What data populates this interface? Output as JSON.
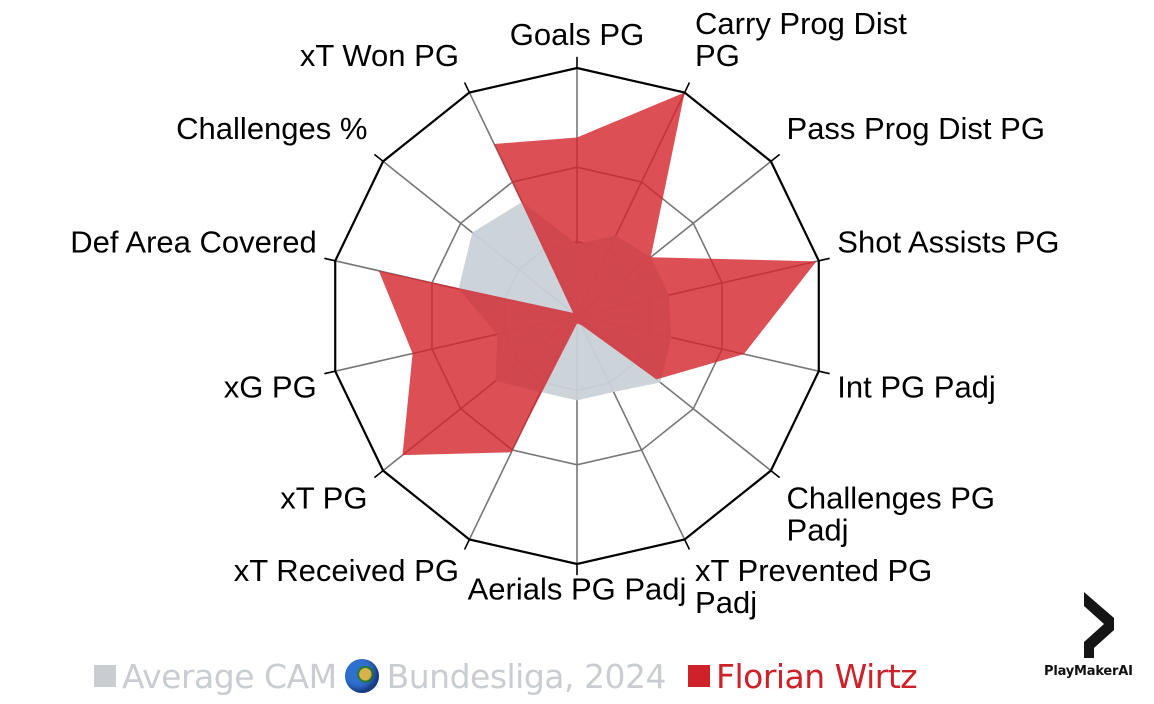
{
  "chart_data": {
    "type": "radar",
    "title": "",
    "categories": [
      "Goals PG",
      "Carry Prog Dist PG",
      "Pass Prog Dist PG",
      "Shot Assists PG",
      "Int PG Padj",
      "Challenges PG Padj",
      "xT Prevented PG Padj",
      "Aerials PG Padj",
      "xT Received PG",
      "xT PG",
      "xG PG",
      "Def Area Covered",
      "Challenges %",
      "xT Won PG"
    ],
    "label_lines": [
      [
        "Goals PG"
      ],
      [
        "Carry Prog Dist",
        "PG"
      ],
      [
        "Pass Prog Dist PG"
      ],
      [
        "Shot Assists PG"
      ],
      [
        "Int PG Padj"
      ],
      [
        "Challenges PG",
        "Padj"
      ],
      [
        "xT Prevented PG",
        "Padj"
      ],
      [
        "Aerials PG Padj"
      ],
      [
        "xT Received PG"
      ],
      [
        "xT PG"
      ],
      [
        "xG PG"
      ],
      [
        "Def Area Covered"
      ],
      [
        "Challenges %"
      ],
      [
        "xT Won PG"
      ]
    ],
    "series": [
      {
        "name": "Average CAM 🌍 Bundesliga, 2024",
        "color": "#c9d2d8",
        "values": [
          0.29,
          0.36,
          0.38,
          0.38,
          0.39,
          0.43,
          0.34,
          0.34,
          0.34,
          0.42,
          0.33,
          0.49,
          0.54,
          0.51
        ]
      },
      {
        "name": "Florian Wirtz",
        "color": "#d2232a",
        "values": [
          0.72,
          1.0,
          0.38,
          0.99,
          0.69,
          0.41,
          0.04,
          0.03,
          0.61,
          0.9,
          0.68,
          0.82,
          0.02,
          0.77
        ]
      }
    ],
    "range": [
      0,
      1
    ],
    "grid_rings": [
      0.3,
      0.6,
      1.0
    ],
    "grid": true,
    "legend_position": "bottom"
  },
  "legend": {
    "average_label": "Average CAM",
    "average_context": "Bundesliga, 2024",
    "player_label": "Florian Wirtz",
    "average_color": "#c9cdd1",
    "player_color": "#cf2129"
  },
  "branding": {
    "logo_text": "PlayMakerAI"
  }
}
